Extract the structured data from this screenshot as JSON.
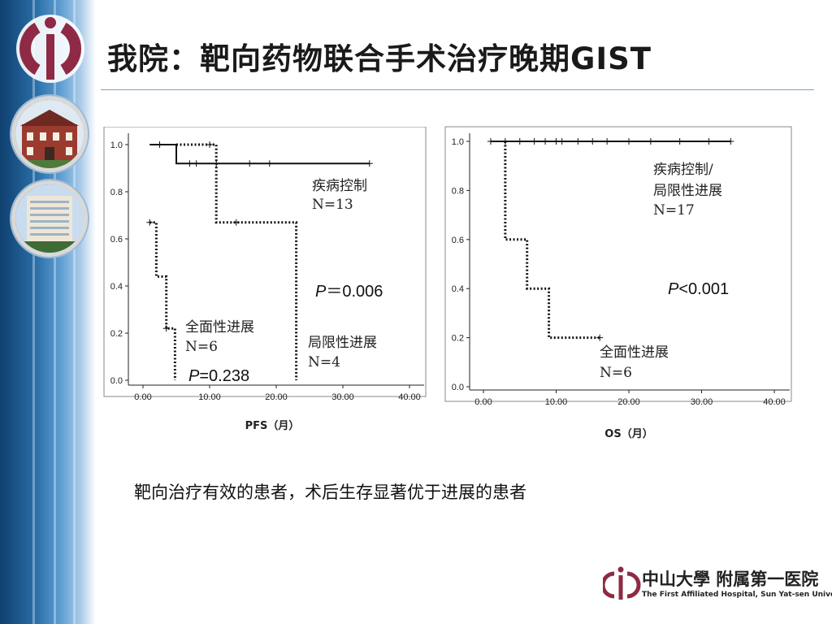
{
  "title": "我院：靶向药物联合手术治疗晚期GIST",
  "summary": "靶向治疗有效的患者，术后生存显著优于进展的患者",
  "footer": {
    "name": "中山大學 附属第一医院",
    "english": "The First Affiliated Hospital, Sun Yat-sen University"
  },
  "colors": {
    "accent": "#2a6fa8",
    "logo": "#8e2a45",
    "curve": "#111111"
  },
  "icons": [
    "hospital-logo-icon",
    "building-photo-icon",
    "tower-photo-icon"
  ],
  "chart_data": [
    {
      "type": "line",
      "subtype": "kaplan-meier",
      "xlabel": "PFS（月）",
      "xlim": [
        0,
        40
      ],
      "ylim": [
        0,
        1
      ],
      "xticks": [
        "0.00",
        "10.00",
        "20.00",
        "30.00",
        "40.00"
      ],
      "yticks": [
        "0.0",
        "0.2",
        "0.4",
        "0.6",
        "0.8",
        "1.0"
      ],
      "grid": false,
      "series": [
        {
          "name": "疾病控制",
          "label": "疾病控制",
          "n_label": "N=13",
          "style": "solid",
          "steps": [
            [
              1,
              1.0
            ],
            [
              5,
              1.0
            ],
            [
              5,
              0.92
            ],
            [
              34,
              0.92
            ]
          ],
          "censored": [
            [
              2.5,
              1.0
            ],
            [
              7,
              0.92
            ],
            [
              8,
              0.92
            ],
            [
              11,
              0.92
            ],
            [
              16,
              0.92
            ],
            [
              19,
              0.92
            ],
            [
              34,
              0.92
            ]
          ]
        },
        {
          "name": "局限性进展",
          "label": "局限性进展",
          "n_label": "N=4",
          "style": "dotted",
          "steps": [
            [
              5,
              1.0
            ],
            [
              11,
              1.0
            ],
            [
              11,
              0.67
            ],
            [
              23,
              0.67
            ],
            [
              23,
              0.0
            ]
          ],
          "censored": [
            [
              10,
              1.0
            ],
            [
              14,
              0.67
            ]
          ]
        },
        {
          "name": "全面性进展",
          "label": "全面性进展",
          "n_label": "N=6",
          "style": "dotted",
          "steps": [
            [
              1,
              0.67
            ],
            [
              2,
              0.67
            ],
            [
              2,
              0.44
            ],
            [
              3.5,
              0.44
            ],
            [
              3.5,
              0.22
            ],
            [
              4.8,
              0.22
            ],
            [
              4.8,
              0.0
            ]
          ],
          "censored": [
            [
              1,
              0.67
            ],
            [
              3.5,
              0.22
            ]
          ]
        }
      ],
      "annotations": [
        {
          "italic": "P",
          "text": "＝0.006"
        },
        {
          "italic": "P",
          "text": "=0.238"
        }
      ]
    },
    {
      "type": "line",
      "subtype": "kaplan-meier",
      "xlabel": "OS（月）",
      "xlim": [
        0,
        40
      ],
      "ylim": [
        0,
        1
      ],
      "xticks": [
        "0.00",
        "10.00",
        "20.00",
        "30.00",
        "40.00"
      ],
      "yticks": [
        "0.0",
        "0.2",
        "0.4",
        "0.6",
        "0.8",
        "1.0"
      ],
      "grid": false,
      "series": [
        {
          "name": "疾病控制/局限性进展",
          "label_lines": [
            "疾病控制/",
            "局限性进展"
          ],
          "n_label": "N=17",
          "style": "solid",
          "steps": [
            [
              1,
              1.0
            ],
            [
              34,
              1.0
            ]
          ],
          "censored": [
            [
              1,
              1.0
            ],
            [
              3,
              1.0
            ],
            [
              5,
              1.0
            ],
            [
              7,
              1.0
            ],
            [
              8.5,
              1.0
            ],
            [
              10,
              1.0
            ],
            [
              10.8,
              1.0
            ],
            [
              13,
              1.0
            ],
            [
              15,
              1.0
            ],
            [
              17,
              1.0
            ],
            [
              20,
              1.0
            ],
            [
              23,
              1.0
            ],
            [
              27,
              1.0
            ],
            [
              31,
              1.0
            ],
            [
              34,
              1.0
            ]
          ]
        },
        {
          "name": "全面性进展",
          "label": "全面性进展",
          "n_label": "N=6",
          "style": "dotted",
          "steps": [
            [
              3,
              1.0
            ],
            [
              3,
              0.6
            ],
            [
              6,
              0.6
            ],
            [
              6,
              0.4
            ],
            [
              9,
              0.4
            ],
            [
              9,
              0.2
            ],
            [
              16,
              0.2
            ]
          ],
          "censored": [
            [
              16,
              0.2
            ]
          ]
        }
      ],
      "annotations": [
        {
          "italic": "P",
          "text": "<0.001"
        }
      ]
    }
  ]
}
